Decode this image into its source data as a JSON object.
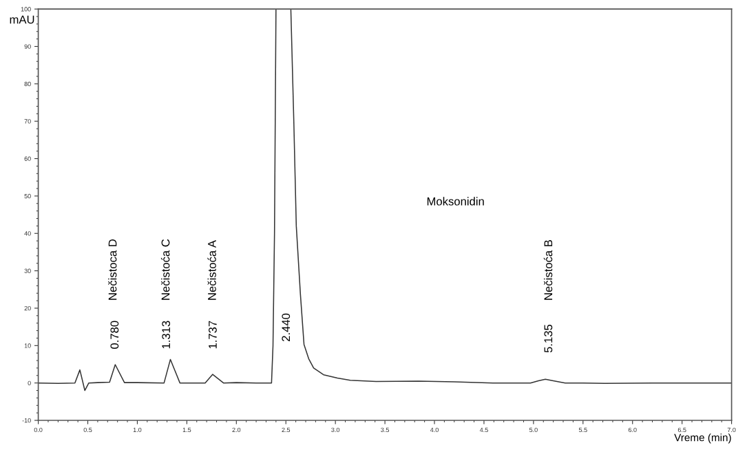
{
  "chart_data": {
    "type": "line",
    "xlabel": "Vreme (min)",
    "ylabel": "mAU",
    "xlim": [
      0,
      7
    ],
    "ylim": [
      -10,
      100
    ],
    "xticks": [
      {
        "value": 0,
        "label": "0.0"
      },
      0.5,
      {
        "value": 1,
        "label": "1.0"
      },
      1.5,
      {
        "value": 2,
        "label": "2.0"
      },
      2.5,
      {
        "value": 3,
        "label": "3.0"
      },
      3.5,
      {
        "value": 4,
        "label": "4.0"
      },
      4.5,
      {
        "value": 5,
        "label": "5.0"
      },
      5.5,
      {
        "value": 6,
        "label": "6.0"
      },
      6.5,
      {
        "value": 7,
        "label": "7.0"
      }
    ],
    "yticks": [
      -10,
      0,
      10,
      20,
      30,
      40,
      50,
      60,
      70,
      80,
      90,
      100
    ],
    "grid": false,
    "legend": false,
    "marker": "none",
    "line_style": "solid",
    "series": [
      {
        "color": "#333333",
        "x": [
          0,
          0.2,
          0.37,
          0.42,
          0.47,
          0.51,
          0.6,
          0.72,
          0.777,
          0.87,
          1.0,
          1.27,
          1.334,
          1.43,
          1.55,
          1.685,
          1.76,
          1.87,
          2.0,
          2.2,
          2.355,
          2.37,
          2.385,
          2.4,
          2.47,
          2.55,
          2.58,
          2.605,
          2.647,
          2.683,
          2.73,
          2.78,
          2.88,
          3.02,
          3.15,
          3.41,
          3.84,
          4.2,
          4.59,
          4.97,
          5.05,
          5.12,
          5.2,
          5.32,
          5.5,
          5.72,
          6.2,
          7.0
        ],
        "values": [
          0,
          -0.1,
          0,
          3.5,
          -2.0,
          0,
          0.1,
          0.2,
          4.9,
          0.1,
          0.1,
          0,
          6.3,
          0,
          0,
          0,
          2.3,
          0,
          0.1,
          0,
          0,
          10,
          40,
          100,
          null,
          100,
          70,
          42,
          23.6,
          10.3,
          6.5,
          4.0,
          2.2,
          1.3,
          0.7,
          0.4,
          0.5,
          0.3,
          0,
          0,
          0.6,
          1.0,
          0.6,
          0,
          0,
          -0.1,
          0,
          0
        ]
      }
    ],
    "annotations": [
      "0.780",
      "Nečistoca D",
      "1.313",
      "Nečistoća C",
      "1.737",
      "Nečistoća A",
      "2.440",
      "Moksonidin",
      "5.135",
      "Nečistoća B"
    ]
  }
}
